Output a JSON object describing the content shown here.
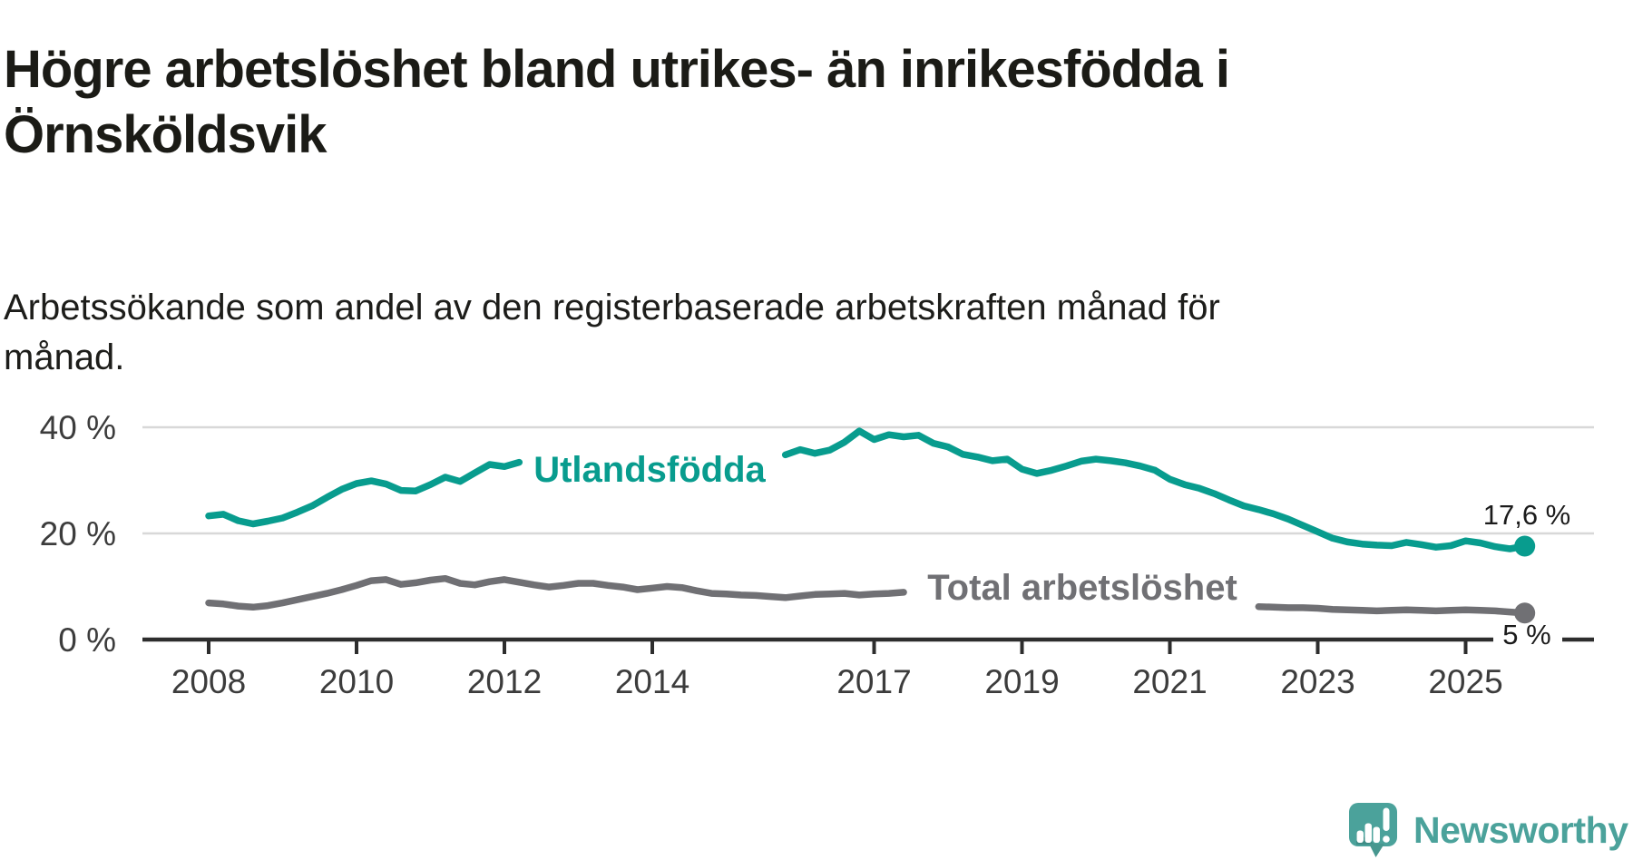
{
  "header": {
    "title": "Högre arbetslöshet bland utrikes- än inrikesfödda i Örnsköldsvik",
    "subtitle": "Arbetssökande som andel av den registerbaserade arbetskraften månad för månad."
  },
  "chart_data": {
    "type": "line",
    "unit": "%",
    "grid": "horizontal",
    "legend_position": "inline-on-lines",
    "x_ticks": [
      "2008",
      "2010",
      "2012",
      "2014",
      "2017",
      "2019",
      "2021",
      "2023",
      "2025"
    ],
    "y_ticks": [
      {
        "value": 0,
        "label": "0 %"
      },
      {
        "value": 20,
        "label": "20 %"
      },
      {
        "value": 40,
        "label": "40 %"
      }
    ],
    "ylim": [
      0,
      44
    ],
    "xlim": [
      2007.1,
      2026.7
    ],
    "x": [
      2008.0,
      2008.2,
      2008.4,
      2008.6,
      2008.8,
      2009.0,
      2009.2,
      2009.4,
      2009.6,
      2009.8,
      2010.0,
      2010.2,
      2010.4,
      2010.6,
      2010.8,
      2011.0,
      2011.2,
      2011.4,
      2011.6,
      2011.8,
      2012.0,
      2012.2,
      2012.4,
      2012.6,
      2012.8,
      2013.0,
      2013.2,
      2013.4,
      2013.6,
      2013.8,
      2014.0,
      2014.2,
      2014.4,
      2014.6,
      2014.8,
      2015.0,
      2015.2,
      2015.4,
      2015.6,
      2015.8,
      2016.0,
      2016.2,
      2016.4,
      2016.6,
      2016.8,
      2017.0,
      2017.2,
      2017.4,
      2017.6,
      2017.8,
      2018.0,
      2018.2,
      2018.4,
      2018.6,
      2018.8,
      2019.0,
      2019.2,
      2019.4,
      2019.6,
      2019.8,
      2020.0,
      2020.2,
      2020.4,
      2020.6,
      2020.8,
      2021.0,
      2021.2,
      2021.4,
      2021.6,
      2021.8,
      2022.0,
      2022.2,
      2022.4,
      2022.6,
      2022.8,
      2023.0,
      2023.2,
      2023.4,
      2023.6,
      2023.8,
      2024.0,
      2024.2,
      2024.4,
      2024.6,
      2024.8,
      2025.0,
      2025.2,
      2025.4,
      2025.6,
      2025.8
    ],
    "series": [
      {
        "name": "Utlandsfödda",
        "color": "#089c8e",
        "end_label": "17,6 %",
        "end_value": 17.6,
        "values": [
          23.3,
          23.6,
          22.4,
          21.8,
          22.3,
          22.9,
          24.0,
          25.2,
          26.8,
          28.3,
          29.4,
          29.9,
          29.3,
          28.1,
          28.0,
          29.2,
          30.6,
          29.8,
          31.4,
          33.0,
          32.6,
          33.4,
          null,
          null,
          null,
          null,
          null,
          null,
          null,
          null,
          null,
          null,
          null,
          null,
          null,
          null,
          null,
          null,
          null,
          34.8,
          35.8,
          35.1,
          35.7,
          37.2,
          39.3,
          37.7,
          38.6,
          38.2,
          38.5,
          37.0,
          36.3,
          34.9,
          34.4,
          33.7,
          34.0,
          32.1,
          31.3,
          31.9,
          32.7,
          33.6,
          34.0,
          33.7,
          33.3,
          32.7,
          31.9,
          30.2,
          29.2,
          28.5,
          27.5,
          26.3,
          25.2,
          24.5,
          23.7,
          22.7,
          21.5,
          20.3,
          19.1,
          18.4,
          18.0,
          17.8,
          17.7,
          18.3,
          17.9,
          17.4,
          17.7,
          18.6,
          18.2,
          17.5,
          17.1,
          17.6
        ]
      },
      {
        "name": "Total arbetslöshet",
        "color": "#707074",
        "end_label": "5 %",
        "end_value": 5,
        "values": [
          6.9,
          6.7,
          6.3,
          6.1,
          6.4,
          6.9,
          7.5,
          8.1,
          8.7,
          9.4,
          10.2,
          11.1,
          11.3,
          10.4,
          10.7,
          11.2,
          11.5,
          10.6,
          10.3,
          10.9,
          11.3,
          10.8,
          10.3,
          9.9,
          10.2,
          10.6,
          10.6,
          10.2,
          9.9,
          9.4,
          9.7,
          10.0,
          9.8,
          9.2,
          8.7,
          8.6,
          8.4,
          8.3,
          8.1,
          7.9,
          8.2,
          8.5,
          8.6,
          8.7,
          8.4,
          8.6,
          8.7,
          8.9,
          null,
          null,
          null,
          null,
          null,
          null,
          null,
          null,
          null,
          null,
          null,
          null,
          null,
          null,
          null,
          null,
          null,
          null,
          null,
          null,
          null,
          null,
          null,
          6.2,
          6.1,
          6.0,
          6.0,
          5.9,
          5.7,
          5.6,
          5.5,
          5.4,
          5.5,
          5.6,
          5.5,
          5.4,
          5.5,
          5.6,
          5.5,
          5.4,
          5.2,
          5.0
        ]
      }
    ]
  },
  "footer": {
    "brand": "Newsworthy"
  },
  "colors": {
    "accent_teal": "#089c8e",
    "series_gray": "#707074",
    "grid": "#d8d8d8",
    "axis": "#2d2d2d",
    "text": "#1b1b16",
    "brand_teal": "#4ba29b"
  }
}
